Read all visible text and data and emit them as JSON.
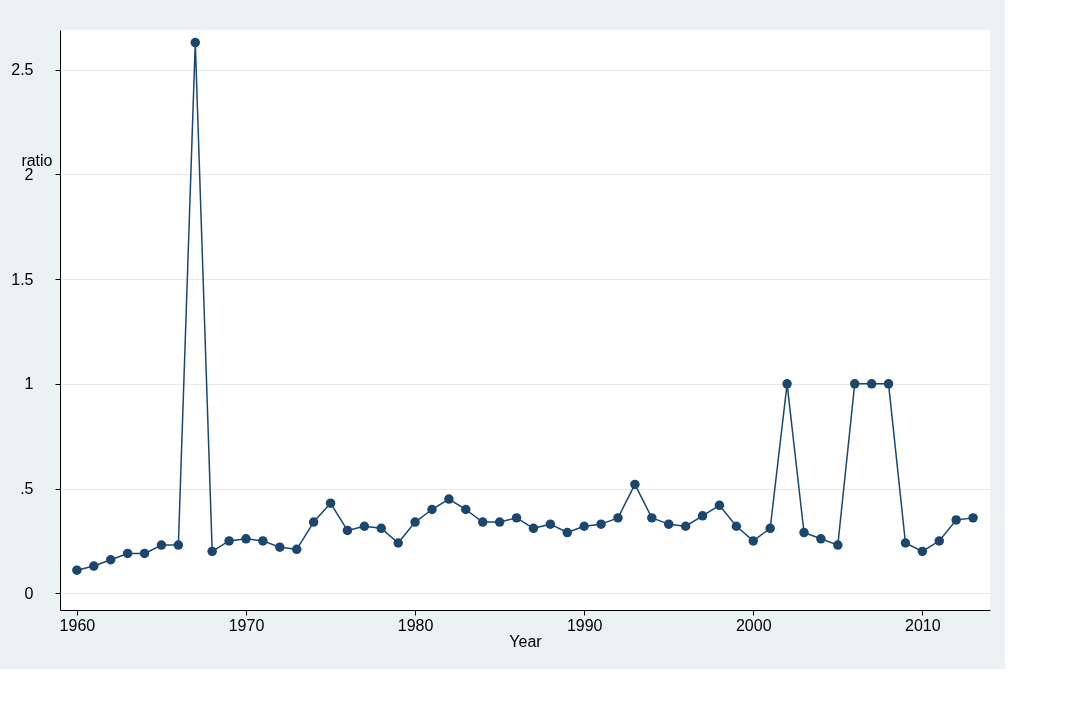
{
  "chart_data": {
    "type": "line",
    "xlabel": "Year",
    "ylabel": "ratio",
    "x": [
      1960,
      1961,
      1962,
      1963,
      1964,
      1965,
      1966,
      1967,
      1968,
      1969,
      1970,
      1971,
      1972,
      1973,
      1974,
      1975,
      1976,
      1977,
      1978,
      1979,
      1980,
      1981,
      1982,
      1983,
      1984,
      1985,
      1986,
      1987,
      1988,
      1989,
      1990,
      1991,
      1992,
      1993,
      1994,
      1995,
      1996,
      1997,
      1998,
      1999,
      2000,
      2001,
      2002,
      2003,
      2004,
      2005,
      2006,
      2007,
      2008,
      2009,
      2010,
      2011,
      2012,
      2013
    ],
    "series": [
      {
        "color": "#1a476f",
        "values": [
          0.11,
          0.13,
          0.16,
          0.19,
          0.19,
          0.23,
          0.23,
          2.63,
          0.2,
          0.25,
          0.26,
          0.25,
          0.22,
          0.21,
          0.34,
          0.43,
          0.3,
          0.32,
          0.31,
          0.24,
          0.34,
          0.4,
          0.45,
          0.4,
          0.34,
          0.34,
          0.36,
          0.31,
          0.33,
          0.29,
          0.32,
          0.33,
          0.36,
          0.52,
          0.36,
          0.33,
          0.32,
          0.37,
          0.42,
          0.32,
          0.25,
          0.31,
          1.0,
          0.29,
          0.26,
          0.23,
          1.0,
          1.0,
          1.0,
          0.24,
          0.2,
          0.25,
          0.35,
          0.36
        ]
      }
    ],
    "xlim": [
      1959,
      2014
    ],
    "xticks": [
      1960,
      1970,
      1980,
      1990,
      2000,
      2010
    ],
    "ylim": [
      -0.08,
      2.69
    ],
    "yticks": [
      0,
      {
        "value": 0.5,
        "label": ".5"
      },
      1,
      1.5,
      2,
      2.5
    ],
    "grid": "y",
    "marker": "circle",
    "line_style": "solid"
  }
}
